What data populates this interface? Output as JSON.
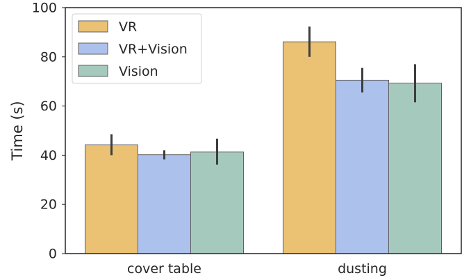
{
  "chart_data": {
    "type": "bar",
    "title": "",
    "xlabel": "",
    "ylabel": "Time (s)",
    "ylim": [
      0,
      100
    ],
    "yticks": [
      0,
      20,
      40,
      60,
      80,
      100
    ],
    "categories": [
      "cover table",
      "dusting"
    ],
    "grid": false,
    "legend_position": "top-left",
    "series": [
      {
        "name": "VR",
        "color": "#ebc274",
        "values": [
          44.2,
          86.1
        ],
        "error_low": [
          40.0,
          80.0
        ],
        "error_high": [
          48.5,
          92.3
        ]
      },
      {
        "name": "VR+Vision",
        "color": "#adc1ed",
        "values": [
          40.2,
          70.5
        ],
        "error_low": [
          38.3,
          65.5
        ],
        "error_high": [
          42.0,
          75.5
        ]
      },
      {
        "name": "Vision",
        "color": "#a6c9bd",
        "values": [
          41.3,
          69.3
        ],
        "error_low": [
          36.2,
          61.5
        ],
        "error_high": [
          46.7,
          77.0
        ]
      }
    ]
  }
}
